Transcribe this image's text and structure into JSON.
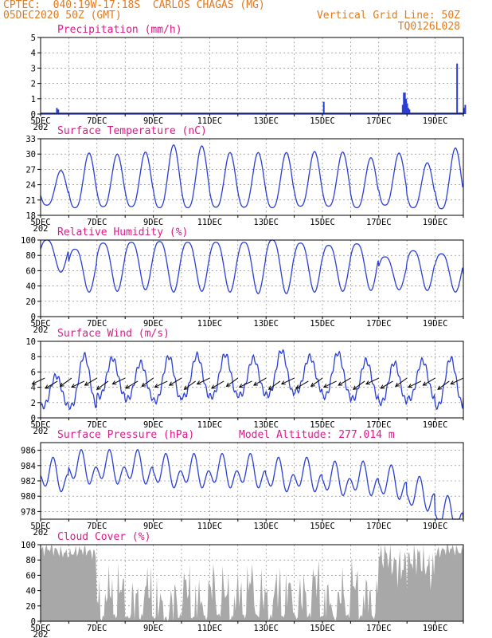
{
  "header": {
    "line1": "CPTEC:  040:19W-17:18S  CARLOS CHAGAS (MG)",
    "line2": "05DEC2020 50Z (GMT)",
    "grid_note": "Vertical Grid Line: 50Z",
    "code": "TQ0126L028"
  },
  "colors": {
    "header": "#e07a1f",
    "title": "#e0198a",
    "series": "#2b3ed6",
    "cloud": "#a8a8a8",
    "grid": "#777777"
  },
  "x_labels": [
    "5DEC",
    "7DEC",
    "9DEC",
    "11DEC",
    "13DEC",
    "15DEC",
    "17DEC",
    "19DEC"
  ],
  "x_label_first_suffix": "202",
  "chart_data": [
    {
      "id": "precip",
      "type": "bar",
      "title": "Precipitation (mm/h)",
      "ylim": [
        0,
        5
      ],
      "yticks": [
        0,
        1,
        2,
        3,
        4,
        5
      ],
      "xlim_days": [
        0,
        15
      ],
      "x_unit": "days since 05DEC2020",
      "bars": [
        [
          0.55,
          0.4
        ],
        [
          0.6,
          0.3
        ],
        [
          10.02,
          0.8
        ],
        [
          12.6,
          0.05
        ],
        [
          13.1,
          0.05
        ],
        [
          12.82,
          0.6
        ],
        [
          12.86,
          1.4
        ],
        [
          12.9,
          1.4
        ],
        [
          12.94,
          1.0
        ],
        [
          12.98,
          0.7
        ],
        [
          13.02,
          0.4
        ],
        [
          13.06,
          0.3
        ],
        [
          14.75,
          3.3
        ],
        [
          14.85,
          0.1
        ],
        [
          15.0,
          0.4
        ],
        [
          15.04,
          0.6
        ]
      ]
    },
    {
      "id": "temperature",
      "type": "line",
      "title": "Surface Temperature (nC)",
      "ylim": [
        18,
        33
      ],
      "yticks": [
        18,
        21,
        24,
        27,
        30,
        33
      ],
      "daily_min": [
        20,
        19.5,
        19.7,
        19.7,
        19.5,
        19.5,
        19.6,
        19.6,
        19.5,
        19.8,
        19.8,
        19.5,
        20.0,
        19.5,
        19.3,
        20.5
      ],
      "daily_max": [
        26.8,
        30.2,
        30.0,
        30.4,
        31.8,
        31.6,
        30.3,
        30.3,
        30.3,
        30.5,
        30.4,
        29.3,
        30.2,
        28.3,
        31.2,
        31.6
      ]
    },
    {
      "id": "humidity",
      "type": "line",
      "title": "Relative Humidity (%)",
      "ylim": [
        0,
        100
      ],
      "yticks": [
        0,
        20,
        40,
        60,
        80,
        100
      ],
      "daily_min": [
        58,
        32,
        33,
        35,
        32,
        33,
        32,
        30,
        30,
        32,
        33,
        34,
        35,
        34,
        32,
        30
      ],
      "daily_max": [
        100,
        88,
        96,
        97,
        98,
        97,
        97,
        97,
        100,
        96,
        93,
        95,
        78,
        86,
        82,
        65
      ]
    },
    {
      "id": "wind",
      "type": "line",
      "title": "Surface Wind (m/s)",
      "ylim": [
        0,
        10
      ],
      "yticks": [
        0,
        2,
        4,
        6,
        8,
        10
      ],
      "daily_min": [
        1.5,
        1.5,
        2.8,
        2.5,
        2.2,
        2.8,
        2.8,
        3.0,
        3.0,
        3.5,
        2.8,
        2.5,
        2.0,
        2.5,
        1.5,
        2.8
      ],
      "daily_max": [
        5.5,
        8.2,
        7.8,
        7.2,
        8.0,
        8.2,
        8.3,
        7.8,
        8.8,
        8.0,
        8.5,
        7.5,
        7.2,
        7.5,
        7.8,
        6.5
      ],
      "arrow_days": [
        0.15,
        0.6,
        1.1,
        1.55,
        2.0,
        2.4,
        3.0,
        3.45,
        4.0,
        4.5,
        5.0,
        5.5,
        6.0,
        6.5,
        7.0,
        7.5,
        8.0,
        8.5,
        9.0,
        9.5,
        10.0,
        10.5,
        11.0,
        11.5,
        12.0,
        12.5,
        13.0,
        13.5,
        14.0,
        14.5,
        15.0
      ]
    },
    {
      "id": "pressure",
      "type": "line",
      "title": "Surface Pressure (hPa)",
      "subtitle": "Model Altitude: 277.014 m",
      "ylim": [
        977,
        987
      ],
      "yticks": [
        978,
        980,
        982,
        984,
        986
      ],
      "base": [
        982.5,
        983.5,
        983.5,
        983.5,
        983.0,
        983.0,
        983.0,
        983.0,
        982.5,
        982.5,
        982.0,
        982.0,
        981.5,
        980.0,
        977.5,
        976.0
      ],
      "amp": 2.4
    },
    {
      "id": "cloud",
      "type": "area",
      "title": "Cloud Cover (%)",
      "ylim": [
        0,
        100
      ],
      "yticks": [
        0,
        20,
        40,
        60,
        80,
        100
      ],
      "daily_level": [
        92,
        90,
        40,
        38,
        30,
        40,
        42,
        45,
        40,
        45,
        38,
        45,
        80,
        75,
        92,
        96
      ]
    }
  ]
}
